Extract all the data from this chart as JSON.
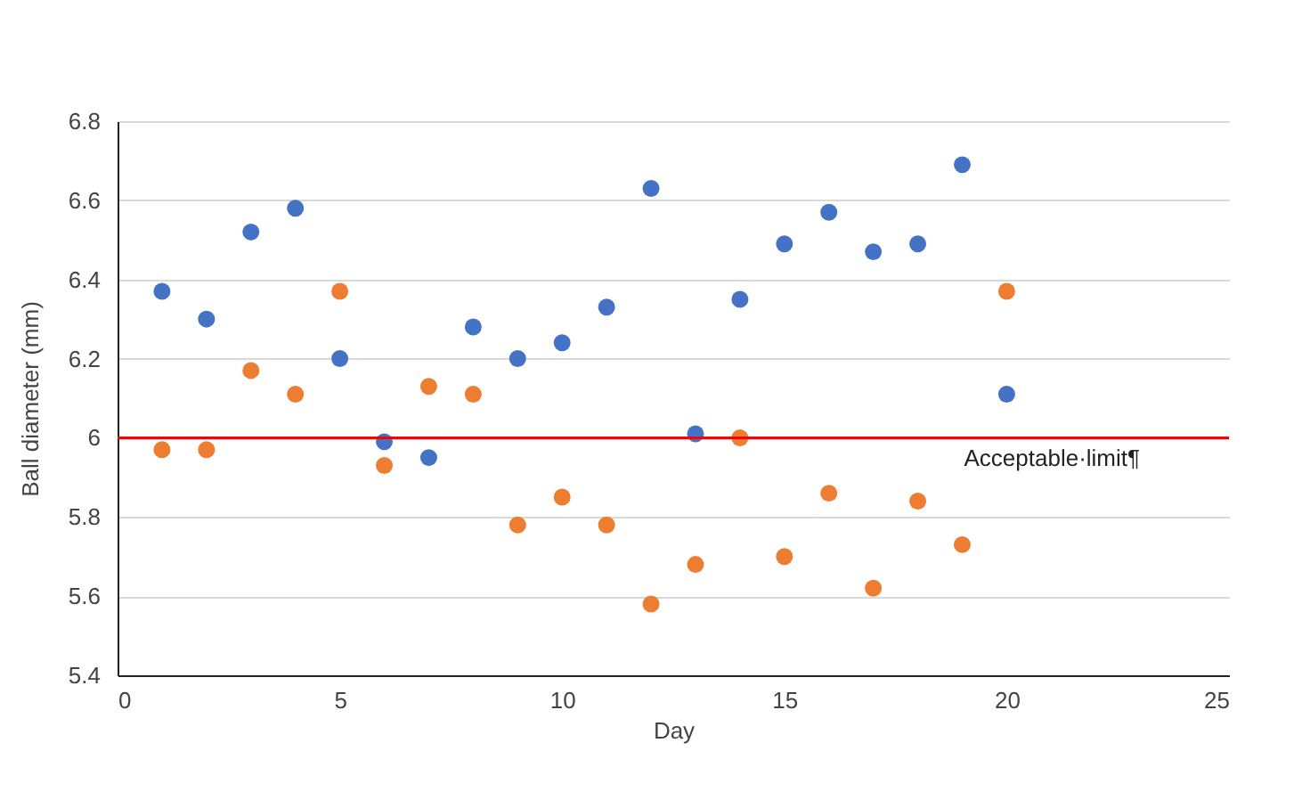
{
  "chart_data": {
    "type": "scatter",
    "xlabel": "Day",
    "ylabel": "Ball diameter (mm)",
    "x": [
      1,
      2,
      3,
      4,
      5,
      6,
      7,
      8,
      9,
      10,
      11,
      12,
      13,
      14,
      15,
      16,
      17,
      18,
      19,
      20
    ],
    "series": [
      {
        "color": "#4472c4",
        "values": [
          6.37,
          6.3,
          6.52,
          6.58,
          6.2,
          5.99,
          5.95,
          6.28,
          6.2,
          6.24,
          6.33,
          6.63,
          6.01,
          6.35,
          6.49,
          6.57,
          6.47,
          6.49,
          6.69,
          6.11
        ]
      },
      {
        "color": "#ed7d31",
        "values": [
          5.97,
          5.97,
          6.17,
          6.11,
          6.37,
          5.93,
          6.13,
          6.11,
          5.78,
          5.85,
          5.78,
          5.58,
          5.68,
          6.0,
          5.7,
          5.86,
          5.62,
          5.84,
          5.73,
          6.37
        ]
      }
    ],
    "xlim": [
      0,
      25
    ],
    "xticks": [
      0,
      5,
      10,
      15,
      20,
      25
    ],
    "ylim": [
      5.4,
      6.8
    ],
    "yticks": [
      5.4,
      5.6,
      5.8,
      6,
      6.2,
      6.4,
      6.6,
      6.8
    ],
    "ref_lines": [
      {
        "axis": "y",
        "value": 6,
        "label": "Acceptable·limit¶",
        "color": "#ff0000"
      }
    ],
    "grid": "y",
    "marker": "circle"
  }
}
